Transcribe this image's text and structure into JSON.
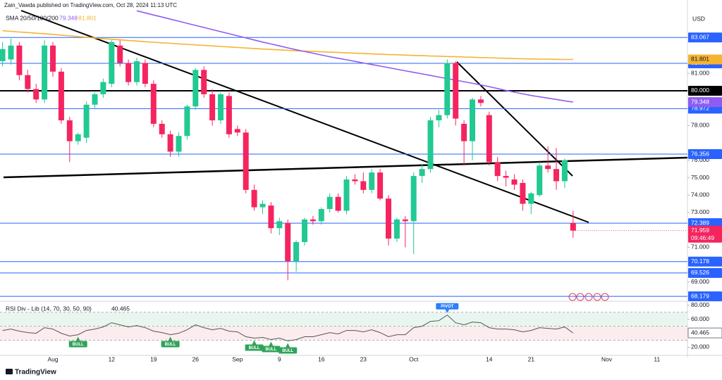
{
  "chart_data": {
    "type": "candlestick",
    "header": "Zain_Vawda published on TradingView.com, Oct 28, 2024 11:13 UTC",
    "currency": "USD",
    "indicator_label": "SMA 20/50/100/200",
    "countdown": "09:46:49",
    "logo": "TradingView",
    "up_color": "#22c993",
    "down_color": "#f5245f",
    "categories": [
      null,
      null,
      null,
      null,
      null,
      null,
      "Aug",
      null,
      null,
      null,
      null,
      null,
      null,
      "12",
      null,
      null,
      null,
      null,
      "19",
      null,
      null,
      null,
      null,
      "26",
      null,
      null,
      null,
      null,
      "Sep",
      null,
      null,
      null,
      null,
      "9",
      null,
      null,
      null,
      null,
      "16",
      null,
      null,
      null,
      null,
      "23",
      null,
      null,
      null,
      null,
      null,
      "Oct",
      null,
      null,
      null,
      null,
      null,
      null,
      null,
      null,
      "14",
      null,
      null,
      null,
      null,
      "21",
      null,
      null,
      null,
      null,
      null,
      null,
      null,
      null,
      "Nov",
      null,
      null,
      null,
      null,
      null,
      "11",
      null,
      null,
      null
    ],
    "open": [
      81.7,
      81.8,
      82.6,
      80.9,
      80.1,
      79.5,
      82.6,
      81.1,
      78.3,
      77.1,
      77.3,
      79.2,
      79.8,
      80.4,
      82.6,
      81.6,
      80.5,
      81.6,
      80.4,
      78.1,
      77.5,
      76.5,
      77.4,
      79.1,
      81.2,
      79.8,
      78.3,
      79.7,
      77.8,
      77.6,
      74.3,
      73.3,
      73.4,
      72.1,
      72.4,
      70.2,
      71.3,
      72.6,
      72.5,
      73.2,
      73.9,
      73.1,
      74.9,
      74.8,
      74.3,
      75.3,
      73.8,
      71.5,
      72.6,
      72.5,
      75.1,
      75.5,
      78.3,
      78.6,
      81.6,
      78.1,
      77.1,
      79.5,
      78.6,
      75.9,
      75.1,
      74.9,
      74.7,
      73.5,
      74.0,
      75.7,
      75.5,
      74.8,
      72.4,
      null,
      null,
      null,
      null,
      null,
      null,
      null,
      null,
      null,
      null,
      null,
      null,
      null
    ],
    "high": [
      82.8,
      83.0,
      82.8,
      81.2,
      80.4,
      82.9,
      82.8,
      81.3,
      78.5,
      77.6,
      79.4,
      79.9,
      80.7,
      82.9,
      82.9,
      81.8,
      81.9,
      81.8,
      80.6,
      78.3,
      77.7,
      77.6,
      79.2,
      81.3,
      81.4,
      80.1,
      79.9,
      79.9,
      78.0,
      77.8,
      74.6,
      73.7,
      73.6,
      72.7,
      72.6,
      71.4,
      72.7,
      72.8,
      73.3,
      74.1,
      74.1,
      75.1,
      75.2,
      75.3,
      75.5,
      75.5,
      74.0,
      72.7,
      72.8,
      75.3,
      75.8,
      78.5,
      78.9,
      81.8,
      81.7,
      78.3,
      79.6,
      79.7,
      78.8,
      76.2,
      75.4,
      75.2,
      74.9,
      74.2,
      75.9,
      76.8,
      76.7,
      76.1,
      73.1,
      null,
      null,
      null,
      null,
      null,
      null,
      null,
      null,
      null,
      null,
      null,
      null,
      null
    ],
    "low": [
      81.4,
      81.5,
      80.6,
      79.9,
      79.3,
      79.3,
      80.8,
      78.1,
      75.9,
      76.9,
      77.0,
      79.0,
      79.6,
      80.2,
      81.4,
      80.3,
      80.3,
      80.2,
      77.9,
      77.3,
      76.2,
      76.2,
      77.2,
      78.9,
      79.6,
      78.0,
      78.1,
      77.3,
      77.4,
      74.1,
      73.1,
      72.9,
      71.8,
      71.7,
      69.1,
      69.6,
      71.1,
      72.3,
      72.3,
      73.0,
      73.0,
      72.9,
      74.6,
      74.1,
      74.1,
      73.7,
      71.1,
      71.3,
      71.0,
      70.6,
      74.7,
      75.3,
      77.9,
      78.4,
      78.0,
      75.7,
      76.0,
      79.1,
      75.7,
      74.8,
      74.5,
      74.3,
      73.1,
      72.9,
      73.9,
      75.3,
      74.3,
      74.4,
      71.55,
      null,
      null,
      null,
      null,
      null,
      null,
      null,
      null,
      null,
      null,
      null,
      null,
      null
    ],
    "close": [
      82.4,
      82.6,
      80.9,
      80.1,
      79.5,
      82.6,
      81.1,
      78.3,
      77.1,
      77.5,
      79.2,
      79.8,
      80.5,
      82.8,
      81.6,
      80.5,
      81.7,
      80.4,
      78.1,
      77.5,
      76.5,
      77.4,
      79.1,
      81.2,
      79.8,
      78.3,
      79.8,
      77.5,
      77.6,
      74.3,
      73.3,
      73.5,
      72.1,
      72.5,
      70.2,
      71.3,
      72.6,
      72.5,
      73.2,
      73.9,
      73.1,
      74.9,
      74.8,
      74.3,
      75.3,
      73.8,
      71.5,
      72.6,
      72.5,
      75.1,
      75.5,
      78.3,
      78.6,
      81.6,
      78.4,
      77.1,
      79.5,
      79.3,
      75.9,
      75.1,
      75.0,
      74.6,
      73.5,
      74.1,
      75.7,
      75.5,
      74.8,
      76.0,
      71.959,
      null,
      null,
      null,
      null,
      null,
      null,
      null,
      null,
      null,
      null,
      null,
      null,
      null
    ],
    "series": [
      {
        "color": "#f5b332",
        "values": [
          83.45,
          83.42,
          83.38,
          83.35,
          83.31,
          83.28,
          83.24,
          83.2,
          83.16,
          83.12,
          83.08,
          83.04,
          83.0,
          82.96,
          82.93,
          82.89,
          82.86,
          82.82,
          82.79,
          82.76,
          82.73,
          82.7,
          82.67,
          82.64,
          82.61,
          82.58,
          82.55,
          82.52,
          82.49,
          82.46,
          82.43,
          82.4,
          82.38,
          82.35,
          82.33,
          82.3,
          82.28,
          82.26,
          82.24,
          82.22,
          82.2,
          82.18,
          82.16,
          82.14,
          82.12,
          82.1,
          82.08,
          82.07,
          82.05,
          82.03,
          82.02,
          82.0,
          81.99,
          81.97,
          81.96,
          81.94,
          81.93,
          81.91,
          81.9,
          81.88,
          81.87,
          81.85,
          81.84,
          81.83,
          81.82,
          81.82,
          81.81,
          81.8,
          81.801,
          null,
          null,
          null,
          null,
          null,
          null,
          null,
          null,
          null,
          null,
          null,
          null,
          null
        ]
      },
      {
        "color": "#8f5cf2",
        "values": [
          null,
          null,
          null,
          null,
          null,
          null,
          null,
          null,
          null,
          null,
          null,
          null,
          null,
          null,
          null,
          null,
          84.6,
          84.48,
          84.36,
          84.24,
          84.12,
          84.0,
          83.88,
          83.76,
          83.64,
          83.52,
          83.4,
          83.28,
          83.16,
          83.04,
          82.92,
          82.8,
          82.69,
          82.58,
          82.47,
          82.36,
          82.26,
          82.16,
          82.06,
          81.96,
          81.87,
          81.78,
          81.69,
          81.6,
          81.51,
          81.42,
          81.33,
          81.24,
          81.15,
          81.06,
          80.97,
          80.88,
          80.79,
          80.7,
          80.61,
          80.52,
          80.43,
          80.34,
          80.24,
          80.13,
          80.02,
          79.92,
          79.82,
          79.73,
          79.65,
          79.58,
          79.5,
          79.42,
          79.348,
          null,
          null,
          null,
          null,
          null,
          null,
          null,
          null,
          null,
          null,
          null,
          null,
          null
        ]
      }
    ],
    "ylim": [
      67.9,
      85.22
    ],
    "yticks": [
      {
        "value": 81,
        "label": "81.000"
      },
      {
        "value": 78,
        "label": "78.000"
      },
      {
        "value": 76,
        "label": "76.000"
      },
      {
        "value": 75,
        "label": "75.000"
      },
      {
        "value": 74,
        "label": "74.000"
      },
      {
        "value": 73,
        "label": "73.000"
      },
      {
        "value": 71,
        "label": "71.000"
      },
      {
        "value": 69,
        "label": "69.000"
      }
    ],
    "levels": [
      {
        "value": 83.067,
        "color": "#2962ff"
      },
      {
        "value": 81.58,
        "label": "81.580",
        "color": "#2962ff"
      },
      {
        "value": 80,
        "label": "80.000",
        "color": "#000000"
      },
      {
        "value": 78.972,
        "color": "#2962ff"
      },
      {
        "value": 76.356,
        "color": "#2962ff"
      },
      {
        "value": 72.389,
        "color": "#2962ff"
      },
      {
        "value": 70.178,
        "color": "#2962ff"
      },
      {
        "value": 69.526,
        "color": "#2962ff"
      },
      {
        "value": 68.179,
        "color": "#2962ff"
      }
    ],
    "rsi": {
      "label": "RSI Div - Lib (14, 70, 30, 50, 90)",
      "color": "#555555",
      "ylim": [
        8.4,
        85.8
      ],
      "yticks": [
        {
          "value": 80,
          "label": "80.000"
        },
        {
          "value": 60,
          "label": "60.000"
        },
        {
          "value": 20,
          "label": "20.000"
        }
      ],
      "levels": [
        70,
        50,
        30
      ],
      "values": [
        44,
        46,
        43,
        41,
        40,
        48,
        46,
        40,
        36,
        38,
        44,
        46,
        49,
        55,
        52,
        49,
        51,
        48,
        43,
        41,
        38,
        40,
        45,
        52,
        48,
        45,
        47,
        43,
        42,
        35,
        33,
        34,
        31,
        33,
        29,
        31,
        35,
        35,
        38,
        41,
        39,
        44,
        44,
        42,
        45,
        41,
        35,
        38,
        38,
        48,
        50,
        57,
        58,
        66,
        55,
        52,
        56,
        55,
        48,
        46,
        46,
        45,
        42,
        44,
        48,
        47,
        46,
        49,
        40.465,
        null,
        null,
        null,
        null,
        null,
        null,
        null,
        null,
        null,
        null,
        null,
        null,
        null
      ],
      "signals": [
        {
          "label": "BULL",
          "at": 9,
          "color": "#2fa35a"
        },
        {
          "label": "BULL",
          "at": 20,
          "color": "#2fa35a"
        },
        {
          "label": "BULL",
          "at": 30,
          "color": "#2fa35a"
        },
        {
          "label": "BULL",
          "at": 32,
          "color": "#2fa35a"
        },
        {
          "label": "BULL",
          "at": 34,
          "color": "#2fa35a"
        },
        {
          "label": "PIVOT",
          "at": 53,
          "color": "#2d7ff9"
        }
      ]
    }
  }
}
